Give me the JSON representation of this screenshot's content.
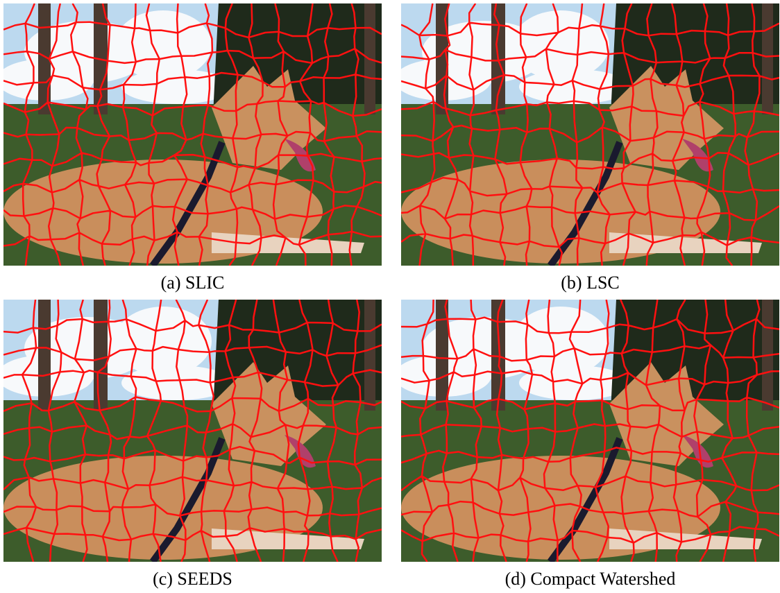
{
  "panels": [
    {
      "caption": "(a) SLIC"
    },
    {
      "caption": "(b) LSC"
    },
    {
      "caption": "(c) SEEDS"
    },
    {
      "caption": "(d) Compact Watershed"
    }
  ]
}
